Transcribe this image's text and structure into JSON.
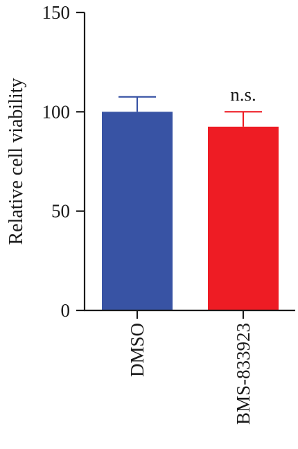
{
  "chart_data": {
    "type": "bar",
    "categories": [
      "DMSO",
      "BMS-833923"
    ],
    "values": [
      100,
      92.5
    ],
    "errors": [
      7.5,
      7.5
    ],
    "colors": [
      "#3853a4",
      "#ee1c24"
    ],
    "ylabel": "Relative cell viability",
    "ylim": [
      0,
      150
    ],
    "yticks": [
      0,
      50,
      100,
      150
    ],
    "ytick_labels": [
      "0",
      "50",
      "100",
      "150"
    ],
    "annotations": [
      {
        "category": "BMS-833923",
        "text": "n.s."
      }
    ],
    "grid": false
  }
}
